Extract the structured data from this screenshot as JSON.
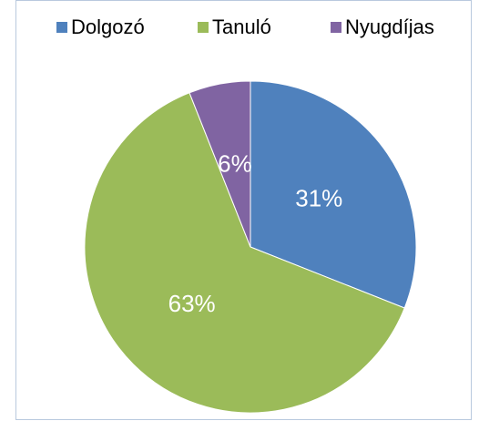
{
  "chart_data": {
    "type": "pie",
    "categories": [
      "Dolgozó",
      "Tanuló",
      "Nyugdíjas"
    ],
    "values": [
      31,
      63,
      6
    ],
    "value_labels": [
      "31%",
      "63%",
      "6%"
    ],
    "colors": [
      "#4f81bd",
      "#9bbb59",
      "#8064a2"
    ],
    "legend": "top"
  }
}
